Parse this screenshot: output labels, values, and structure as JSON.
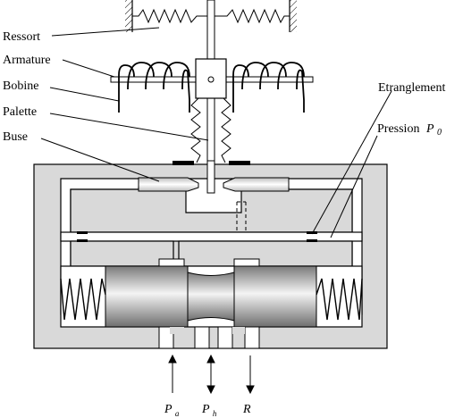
{
  "labels": {
    "ressort": "Ressort",
    "armature": "Armature",
    "bobine": "Bobine",
    "palette": "Palette",
    "buse": "Buse",
    "etranglement": "Etranglement",
    "pression": "Pression",
    "pression_symbol": "P",
    "pression_sub": "0"
  },
  "ports": {
    "pa_symbol": "P",
    "pa_sub": "a",
    "ph_symbol": "P",
    "ph_sub": "h",
    "r_symbol": "R"
  },
  "colors": {
    "body": "#d9d9d9",
    "line": "#000000",
    "spool_dark": "#8a8a8a",
    "spool_light": "#f2f2f2"
  },
  "icons": {
    "spring": "zigzag-spring",
    "coil": "coil-loops",
    "pivot": "pivot-circle"
  }
}
